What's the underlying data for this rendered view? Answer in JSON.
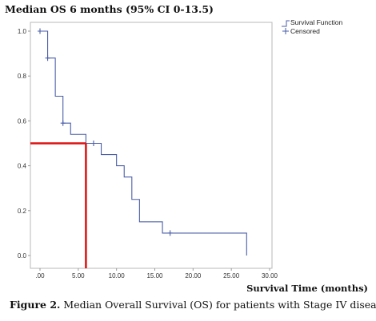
{
  "title": "Median OS 6 months (95% CI 0-13.5)",
  "caption": {
    "label": "Figure 2.",
    "text": "Median Overall Survival (OS) for patients with Stage IV disease."
  },
  "chart_data": {
    "type": "line",
    "title": "Median OS 6 months (95% CI 0-13.5)",
    "xlabel": "Survival  Time (months)",
    "ylabel": "",
    "xlim": [
      0,
      30
    ],
    "ylim": [
      0,
      1
    ],
    "x_ticks": [
      0,
      5,
      10,
      15,
      20,
      25,
      30
    ],
    "x_tick_labels": [
      ".00",
      "5.00",
      "10.00",
      "15.00",
      "20.00",
      "25.00",
      "30.00"
    ],
    "y_ticks": [
      0,
      0.2,
      0.4,
      0.6,
      0.8,
      1.0
    ],
    "y_tick_labels": [
      "0.0",
      "0.2",
      "0.4",
      "0.6",
      "0.8",
      "1.0"
    ],
    "legend": {
      "placement": "top-right",
      "entries": [
        "Survival Function",
        "Censored"
      ]
    },
    "series": [
      {
        "name": "Survival Function",
        "color": "#4a5ea8",
        "steps": [
          {
            "x": 0,
            "y": 1.0
          },
          {
            "x": 1,
            "y": 0.88
          },
          {
            "x": 2,
            "y": 0.71
          },
          {
            "x": 3,
            "y": 0.59
          },
          {
            "x": 4,
            "y": 0.54
          },
          {
            "x": 6,
            "y": 0.5
          },
          {
            "x": 8,
            "y": 0.45
          },
          {
            "x": 10,
            "y": 0.4
          },
          {
            "x": 11,
            "y": 0.35
          },
          {
            "x": 12,
            "y": 0.25
          },
          {
            "x": 13,
            "y": 0.15
          },
          {
            "x": 16,
            "y": 0.1
          },
          {
            "x": 27,
            "y": 0.0
          }
        ]
      },
      {
        "name": "Censored",
        "color": "#4a5ea8",
        "points": [
          {
            "x": 0,
            "y": 1.0
          },
          {
            "x": 1,
            "y": 0.88
          },
          {
            "x": 3,
            "y": 0.59
          },
          {
            "x": 7,
            "y": 0.5
          },
          {
            "x": 17,
            "y": 0.1
          }
        ]
      }
    ],
    "median_marker": {
      "x": 6,
      "y": 0.5,
      "color": "#dd1111"
    }
  }
}
